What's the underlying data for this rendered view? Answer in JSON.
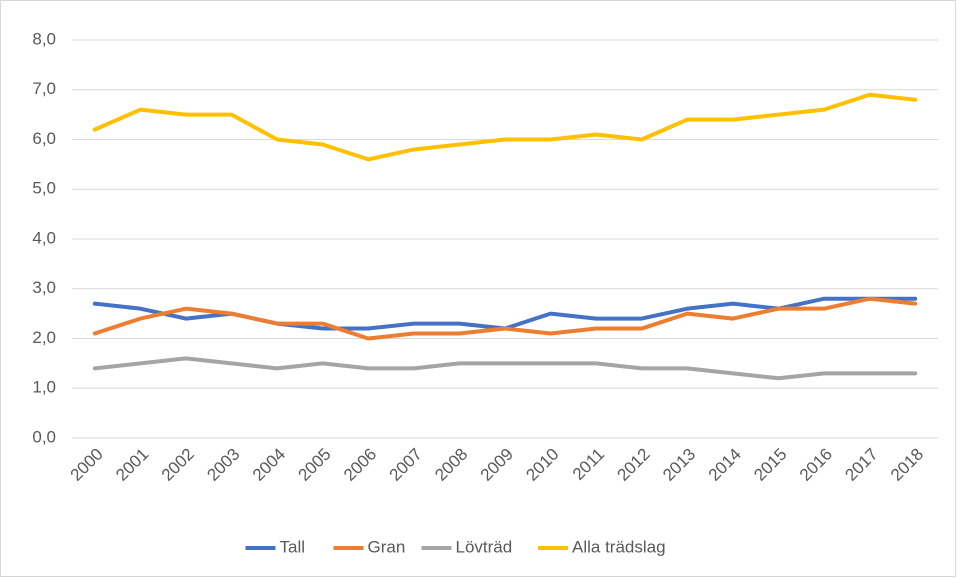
{
  "chart_data": {
    "type": "line",
    "categories": [
      "2000",
      "2001",
      "2002",
      "2003",
      "2004",
      "2005",
      "2006",
      "2007",
      "2008",
      "2009",
      "2010",
      "2011",
      "2012",
      "2013",
      "2014",
      "2015",
      "2016",
      "2017",
      "2018"
    ],
    "series": [
      {
        "name": "Tall",
        "color": "#4472c4",
        "values": [
          2.7,
          2.6,
          2.4,
          2.5,
          2.3,
          2.2,
          2.2,
          2.3,
          2.3,
          2.2,
          2.5,
          2.4,
          2.4,
          2.6,
          2.7,
          2.6,
          2.8,
          2.8,
          2.8
        ]
      },
      {
        "name": "Gran",
        "color": "#ed7d31",
        "values": [
          2.1,
          2.4,
          2.6,
          2.5,
          2.3,
          2.3,
          2.0,
          2.1,
          2.1,
          2.2,
          2.1,
          2.2,
          2.2,
          2.5,
          2.4,
          2.6,
          2.6,
          2.8,
          2.7
        ]
      },
      {
        "name": "Lövträd",
        "color": "#a5a5a5",
        "values": [
          1.4,
          1.5,
          1.6,
          1.5,
          1.4,
          1.5,
          1.4,
          1.4,
          1.5,
          1.5,
          1.5,
          1.5,
          1.4,
          1.4,
          1.3,
          1.2,
          1.3,
          1.3,
          1.3
        ]
      },
      {
        "name": "Alla trädslag",
        "color": "#ffc000",
        "values": [
          6.2,
          6.6,
          6.5,
          6.5,
          6.0,
          5.9,
          5.6,
          5.8,
          5.9,
          6.0,
          6.0,
          6.1,
          6.0,
          6.4,
          6.4,
          6.5,
          6.6,
          6.9,
          6.8
        ]
      }
    ],
    "ylim": [
      0,
      8
    ],
    "yticks": [
      {
        "value": 0,
        "label": "0,0"
      },
      {
        "value": 1,
        "label": "1,0"
      },
      {
        "value": 2,
        "label": "2,0"
      },
      {
        "value": 3,
        "label": "3,0"
      },
      {
        "value": 4,
        "label": "4,0"
      },
      {
        "value": 5,
        "label": "5,0"
      },
      {
        "value": 6,
        "label": "6,0"
      },
      {
        "value": 7,
        "label": "7,0"
      },
      {
        "value": 8,
        "label": "8,0"
      }
    ],
    "grid": true,
    "legend": "bottom"
  }
}
